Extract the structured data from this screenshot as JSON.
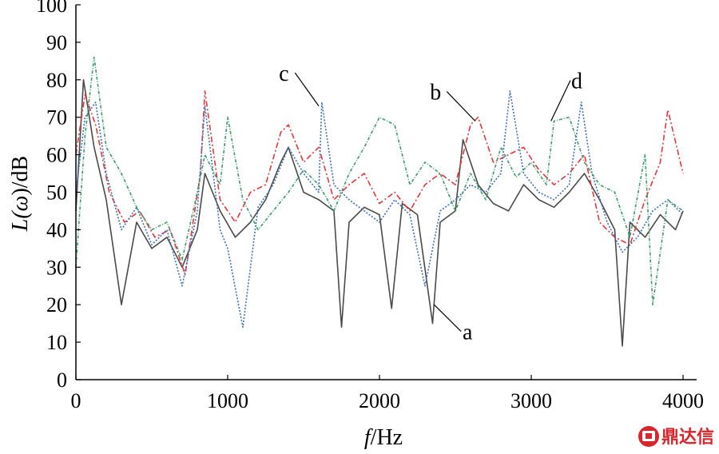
{
  "chart_data": {
    "type": "line",
    "xlabel_italic": "f",
    "xlabel_unit": "/Hz",
    "ylabel_prefix": "L(",
    "ylabel_omega": "ω",
    "ylabel_suffix": ")/dB",
    "xlim": [
      0,
      4000
    ],
    "ylim": [
      0,
      100
    ],
    "x_ticks": [
      0,
      1000,
      2000,
      3000,
      4000
    ],
    "y_ticks": [
      0,
      10,
      20,
      30,
      40,
      50,
      60,
      70,
      80,
      90,
      100
    ],
    "grid": false,
    "legend": "none (series identified by callout letters)",
    "series": [
      {
        "name": "a",
        "color": "#4a4a4a",
        "dash": "solid",
        "x": [
          0,
          50,
          120,
          200,
          300,
          400,
          500,
          600,
          700,
          800,
          850,
          950,
          1050,
          1150,
          1250,
          1350,
          1400,
          1500,
          1600,
          1700,
          1750,
          1800,
          1900,
          2000,
          2080,
          2150,
          2250,
          2350,
          2400,
          2500,
          2550,
          2650,
          2750,
          2850,
          2950,
          3050,
          3150,
          3250,
          3350,
          3450,
          3550,
          3600,
          3650,
          3750,
          3850,
          3950,
          4000
        ],
        "y": [
          45,
          80,
          62,
          48,
          20,
          42,
          35,
          38,
          30,
          40,
          55,
          45,
          38,
          42,
          48,
          58,
          62,
          50,
          48,
          45,
          14,
          42,
          46,
          44,
          19,
          47,
          44,
          15,
          42,
          45,
          64,
          52,
          47,
          45,
          52,
          48,
          46,
          50,
          55,
          48,
          40,
          9,
          42,
          38,
          44,
          40,
          45
        ]
      },
      {
        "name": "b",
        "color": "#e0383f",
        "dash": "dashdot",
        "x": [
          0,
          60,
          130,
          220,
          320,
          420,
          520,
          620,
          720,
          820,
          850,
          950,
          1050,
          1150,
          1250,
          1350,
          1400,
          1500,
          1600,
          1700,
          1800,
          1900,
          2000,
          2100,
          2200,
          2300,
          2400,
          2500,
          2600,
          2650,
          2750,
          2850,
          2950,
          3050,
          3150,
          3250,
          3350,
          3450,
          3550,
          3650,
          3750,
          3850,
          3900,
          4000
        ],
        "y": [
          60,
          76,
          68,
          50,
          42,
          45,
          38,
          40,
          28,
          55,
          77,
          48,
          42,
          50,
          52,
          66,
          68,
          58,
          62,
          48,
          52,
          55,
          47,
          50,
          45,
          52,
          55,
          52,
          68,
          70,
          58,
          60,
          62,
          56,
          52,
          55,
          60,
          42,
          38,
          36,
          48,
          58,
          72,
          55
        ]
      },
      {
        "name": "c",
        "color": "#3f6fb5",
        "dash": "dotted",
        "x": [
          0,
          60,
          130,
          200,
          300,
          400,
          500,
          600,
          700,
          800,
          850,
          950,
          1000,
          1100,
          1200,
          1300,
          1400,
          1500,
          1600,
          1620,
          1700,
          1800,
          1900,
          2000,
          2100,
          2200,
          2300,
          2400,
          2500,
          2600,
          2700,
          2800,
          2860,
          2950,
          3050,
          3150,
          3250,
          3330,
          3400,
          3500,
          3600,
          3700,
          3800,
          3900,
          4000
        ],
        "y": [
          50,
          70,
          74,
          55,
          40,
          46,
          36,
          40,
          25,
          45,
          73,
          40,
          35,
          14,
          46,
          52,
          62,
          55,
          50,
          74,
          52,
          48,
          45,
          42,
          48,
          44,
          25,
          45,
          48,
          52,
          50,
          55,
          77,
          55,
          50,
          48,
          52,
          74,
          55,
          42,
          34,
          38,
          45,
          48,
          44
        ]
      },
      {
        "name": "d",
        "color": "#3d9a6a",
        "dash": "dashed-dotted",
        "x": [
          0,
          60,
          120,
          200,
          300,
          400,
          500,
          600,
          700,
          800,
          850,
          950,
          1000,
          1100,
          1200,
          1300,
          1400,
          1500,
          1600,
          1700,
          1800,
          1900,
          2000,
          2100,
          2200,
          2300,
          2400,
          2500,
          2600,
          2700,
          2800,
          2900,
          3000,
          3100,
          3150,
          3250,
          3350,
          3450,
          3550,
          3650,
          3750,
          3800,
          3900,
          4000
        ],
        "y": [
          30,
          65,
          86,
          62,
          55,
          46,
          40,
          42,
          32,
          50,
          60,
          52,
          70,
          48,
          40,
          45,
          50,
          56,
          52,
          45,
          55,
          62,
          70,
          68,
          52,
          58,
          55,
          45,
          55,
          48,
          62,
          54,
          58,
          52,
          69,
          70,
          58,
          52,
          50,
          38,
          60,
          20,
          48,
          45
        ]
      }
    ],
    "callouts": [
      {
        "label": "a",
        "point_x": 2360,
        "point_y": 20,
        "text_x": 2580,
        "text_y": 12
      },
      {
        "label": "b",
        "point_x": 2630,
        "point_y": 69,
        "text_x": 2370,
        "text_y": 76
      },
      {
        "label": "c",
        "point_x": 1600,
        "point_y": 73,
        "text_x": 1370,
        "text_y": 81
      },
      {
        "label": "d",
        "point_x": 3130,
        "point_y": 69,
        "text_x": 3300,
        "text_y": 79
      }
    ]
  },
  "watermark": {
    "text": "鼎达信",
    "color": "#d7262c",
    "icon": "logo-badge-icon"
  }
}
